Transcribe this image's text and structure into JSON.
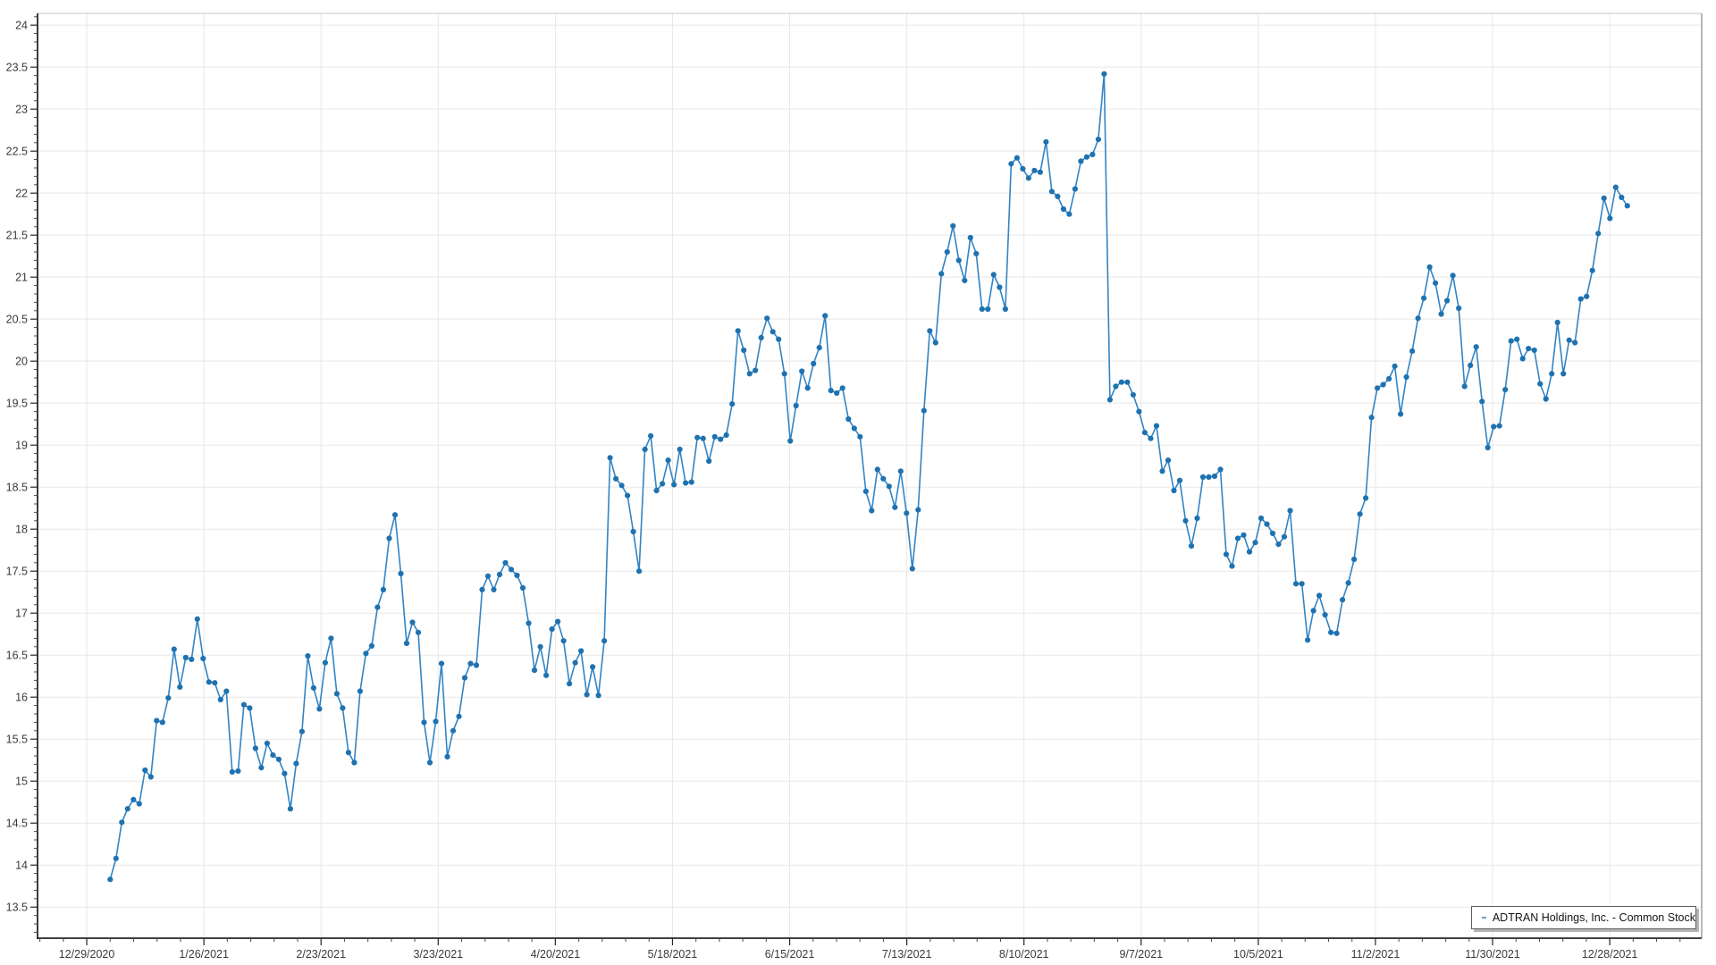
{
  "legend": {
    "label": "ADTRAN Holdings, Inc. - Common Stock"
  },
  "chart_data": {
    "type": "line",
    "title": "",
    "xlabel": "",
    "ylabel": "",
    "series_name": "ADTRAN Holdings, Inc. - Common Stock",
    "line_color": "#3384c4",
    "marker_color": "#1f72b0",
    "grid": "both",
    "legend_position": "bottom-right",
    "x_tick_labels": [
      "12/29/2020",
      "1/26/2021",
      "2/23/2021",
      "3/23/2021",
      "4/20/2021",
      "5/18/2021",
      "6/15/2021",
      "7/13/2021",
      "8/10/2021",
      "9/7/2021",
      "10/5/2021",
      "11/2/2021",
      "11/30/2021",
      "12/28/2021"
    ],
    "x_tick_day_step": 20,
    "xlim_days": [
      -8.4,
      275.7
    ],
    "y_ticks": [
      24,
      23.5,
      23,
      22.5,
      22,
      21.5,
      21,
      20.5,
      20,
      19.5,
      19,
      18.5,
      18,
      17.5,
      17,
      16.5,
      16,
      15.5,
      15,
      14.5,
      14,
      13.5
    ],
    "ylim": [
      13.13,
      24.14
    ],
    "y_minor_step": 0.1,
    "x_minor_day_step": 4,
    "start_day": 4,
    "end_day": 263,
    "values": [
      13.83,
      14.08,
      14.51,
      14.67,
      14.78,
      14.73,
      15.13,
      15.05,
      15.72,
      15.7,
      15.99,
      16.57,
      16.12,
      16.47,
      16.45,
      16.93,
      16.46,
      16.18,
      16.17,
      15.97,
      16.07,
      15.11,
      15.12,
      15.91,
      15.87,
      15.39,
      15.16,
      15.45,
      15.31,
      15.26,
      15.09,
      14.67,
      15.21,
      15.59,
      16.49,
      16.11,
      15.86,
      16.41,
      16.7,
      16.04,
      15.87,
      15.34,
      15.22,
      16.07,
      16.52,
      16.61,
      17.07,
      17.28,
      17.89,
      18.17,
      17.47,
      16.64,
      16.89,
      16.77,
      15.7,
      15.22,
      15.71,
      16.4,
      15.29,
      15.6,
      15.77,
      16.23,
      16.4,
      16.38,
      17.28,
      17.44,
      17.28,
      17.46,
      17.6,
      17.52,
      17.45,
      17.3,
      16.88,
      16.32,
      16.6,
      16.26,
      16.81,
      16.9,
      16.67,
      16.16,
      16.41,
      16.55,
      16.03,
      16.36,
      16.02,
      16.67,
      18.85,
      18.6,
      18.52,
      18.4,
      17.97,
      17.5,
      18.95,
      19.11,
      18.46,
      18.54,
      18.82,
      18.53,
      18.95,
      18.55,
      18.56,
      19.09,
      19.08,
      18.81,
      19.1,
      19.07,
      19.12,
      19.49,
      20.36,
      20.13,
      19.85,
      19.89,
      20.28,
      20.51,
      20.35,
      20.26,
      19.85,
      19.05,
      19.47,
      19.88,
      19.68,
      19.97,
      20.16,
      20.54,
      19.65,
      19.62,
      19.68,
      19.31,
      19.2,
      19.1,
      18.45,
      18.22,
      18.71,
      18.6,
      18.51,
      18.26,
      18.69,
      18.19,
      17.53,
      18.23,
      19.41,
      20.36,
      20.22,
      21.04,
      21.3,
      21.61,
      21.2,
      20.96,
      21.47,
      21.28,
      20.62,
      20.62,
      21.03,
      20.88,
      20.62,
      22.35,
      22.42,
      22.29,
      22.18,
      22.27,
      22.25,
      22.61,
      22.02,
      21.96,
      21.81,
      21.75,
      22.05,
      22.38,
      22.43,
      22.46,
      22.64,
      23.42,
      19.54,
      19.7,
      19.75,
      19.75,
      19.6,
      19.4,
      19.15,
      19.08,
      19.23,
      18.69,
      18.82,
      18.46,
      18.58,
      18.1,
      17.8,
      18.13,
      18.62,
      18.62,
      18.63,
      18.71,
      17.7,
      17.56,
      17.89,
      17.93,
      17.73,
      17.84,
      18.13,
      18.06,
      17.95,
      17.82,
      17.91,
      18.22,
      17.35,
      17.35,
      16.68,
      17.03,
      17.21,
      16.98,
      16.77,
      16.76,
      17.16,
      17.36,
      17.64,
      18.18,
      18.37,
      19.33,
      19.68,
      19.72,
      19.79,
      19.94,
      19.37,
      19.81,
      20.12,
      20.51,
      20.75,
      21.12,
      20.93,
      20.56,
      20.72,
      21.02,
      20.63,
      19.7,
      19.95,
      20.17,
      19.52,
      18.97,
      19.22,
      19.23,
      19.66,
      20.24,
      20.26,
      20.03,
      20.15,
      20.13,
      19.73,
      19.55,
      19.85,
      20.46,
      19.85,
      20.25,
      20.22,
      20.74,
      20.77,
      21.08,
      21.52,
      21.94,
      21.7,
      22.07,
      21.95,
      21.85
    ]
  }
}
